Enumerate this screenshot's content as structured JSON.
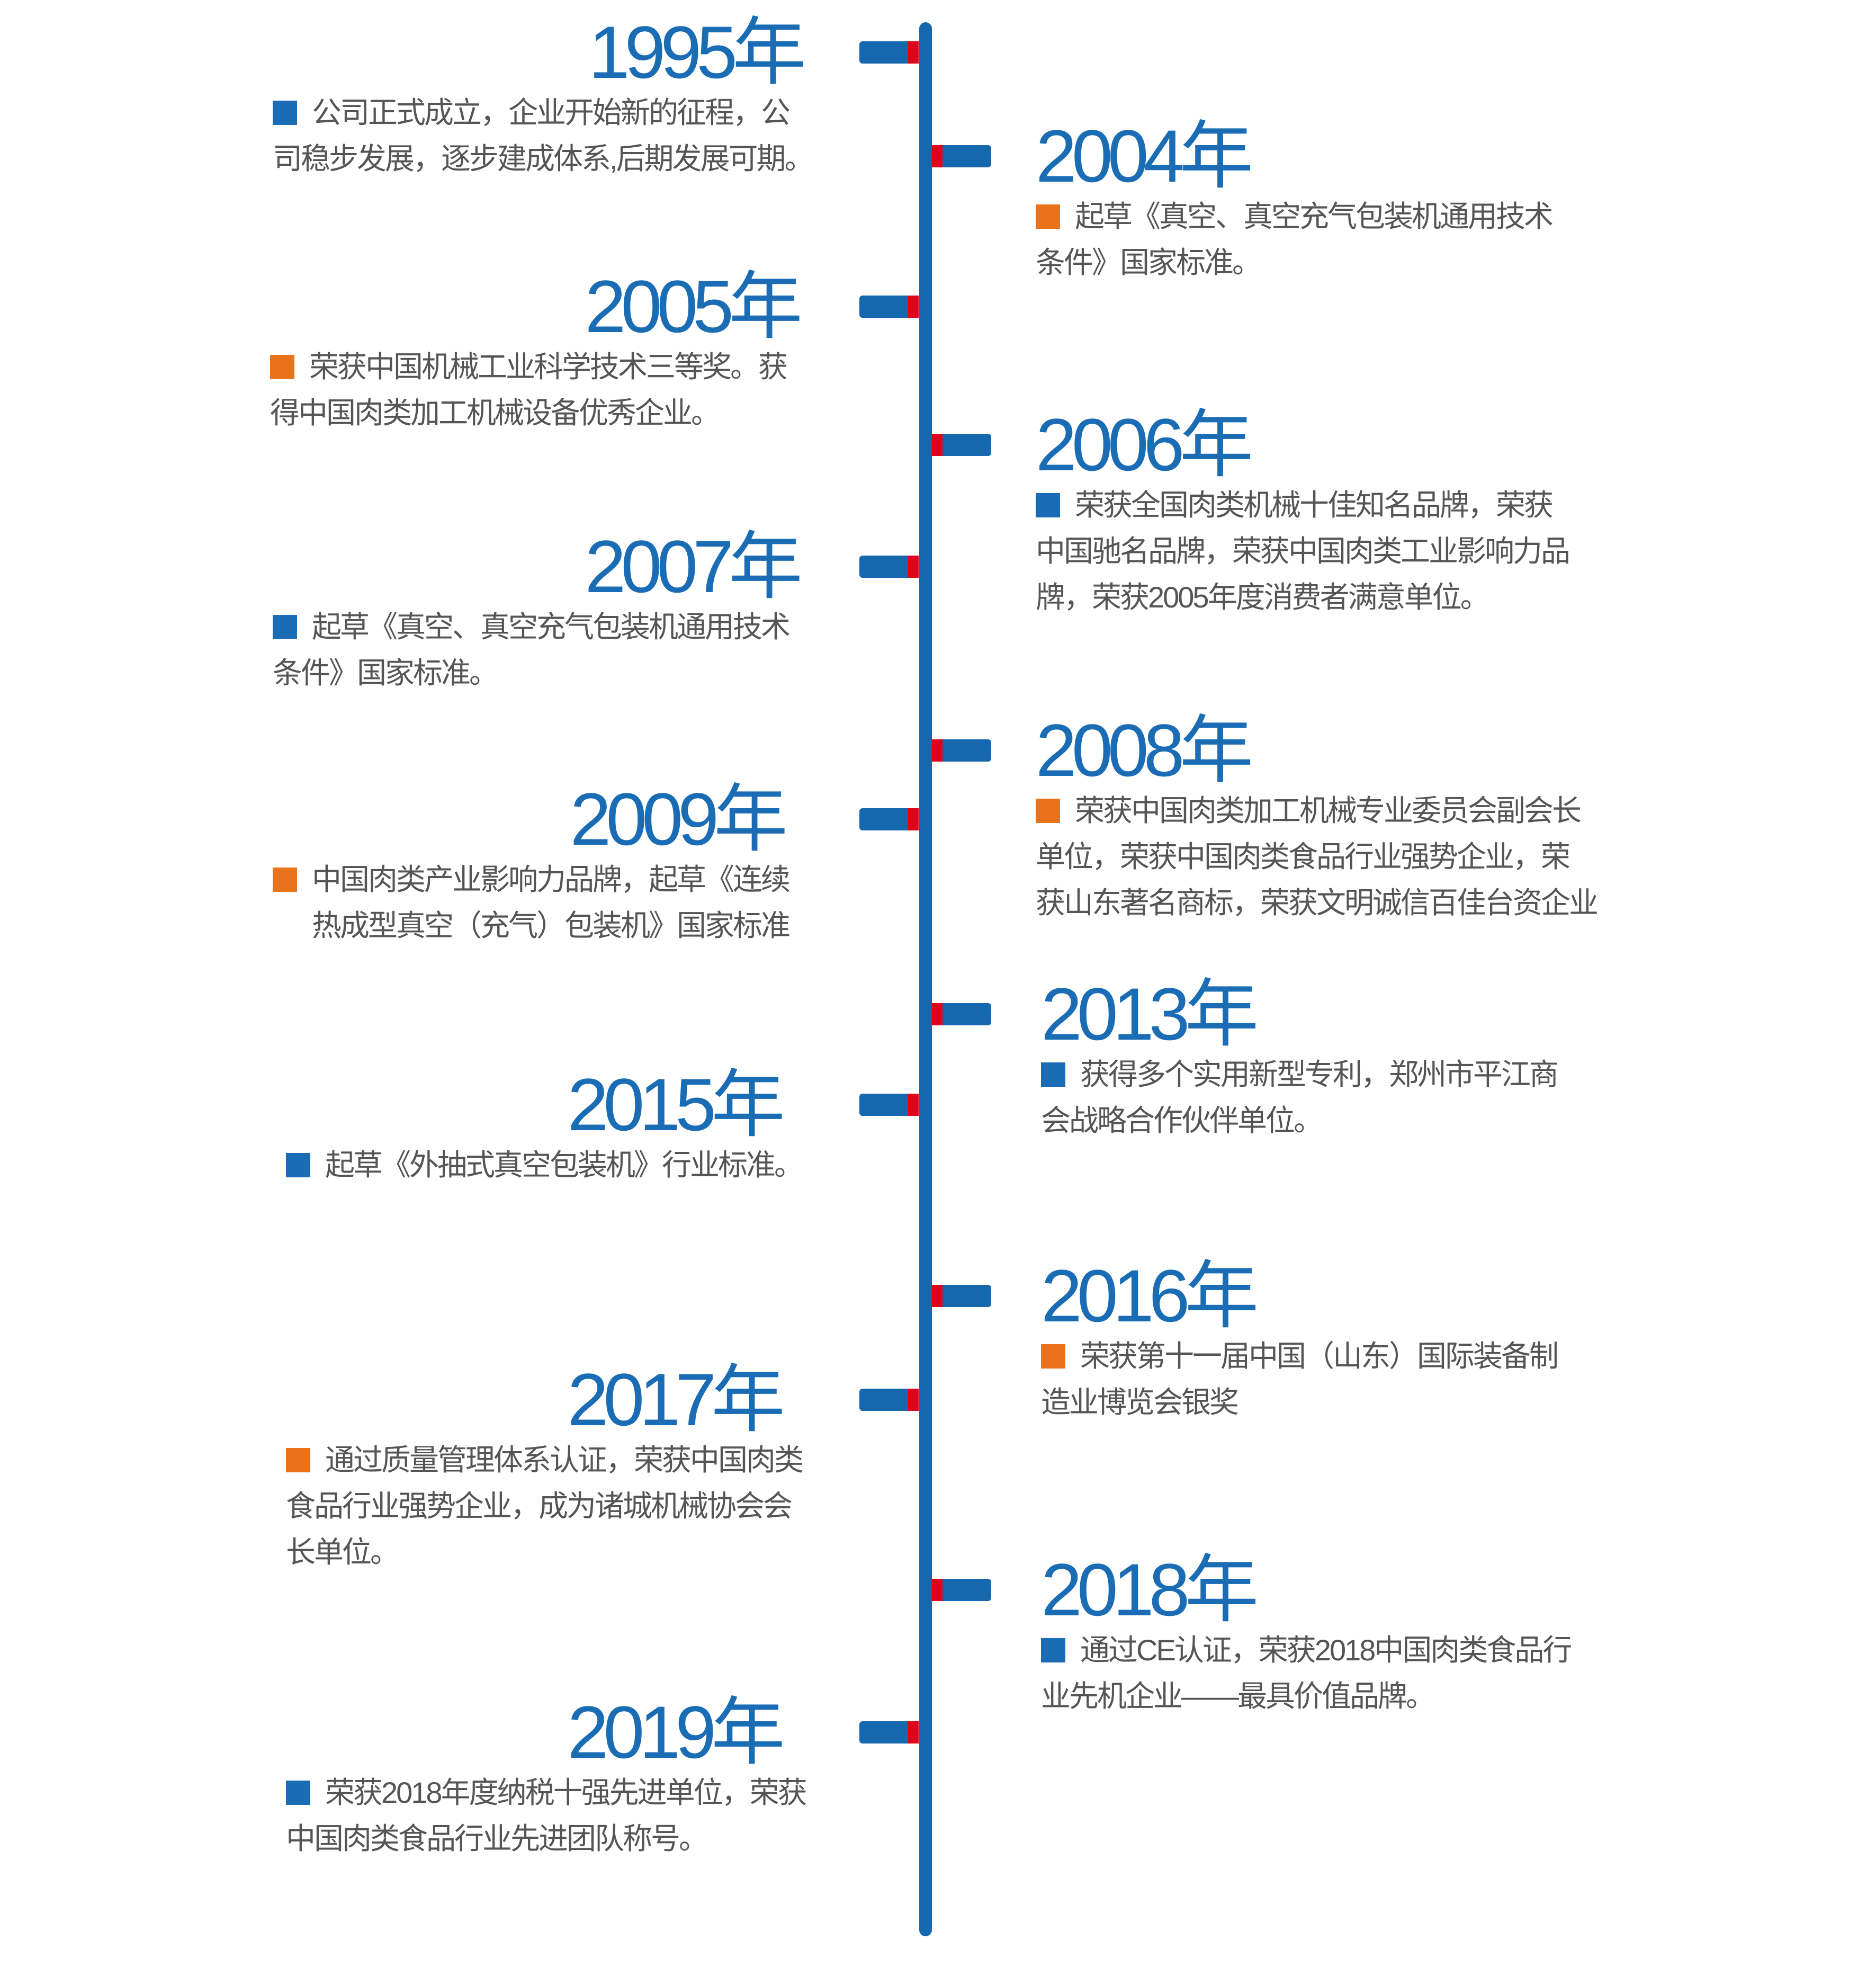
{
  "colors": {
    "axis": "#1568ad",
    "tick_blue": "#1568ad",
    "tick_red": "#e3001b",
    "year": "#1a6db5",
    "text": "#555555",
    "bullet_blue": "#1a6db5",
    "bullet_orange": "#e8731b"
  },
  "events": [
    {
      "year": "1995年",
      "side": "left",
      "bullet": "blue",
      "lines": [
        "公司正式成立，企业开始新的征程，公",
        "司稳步发展，逐步建成体系,后期发展可期。"
      ]
    },
    {
      "year": "2004年",
      "side": "right",
      "bullet": "orange",
      "lines": [
        "起草《真空、真空充气包装机通用技术",
        "条件》国家标准。"
      ]
    },
    {
      "year": "2005年",
      "side": "left",
      "bullet": "orange",
      "lines": [
        "荣获中国机械工业科学技术三等奖。获",
        "得中国肉类加工机械设备优秀企业。"
      ]
    },
    {
      "year": "2006年",
      "side": "right",
      "bullet": "blue",
      "lines": [
        "荣获全国肉类机械十佳知名品牌，荣获",
        "中国驰名品牌，荣获中国肉类工业影响力品",
        "牌，荣获2005年度消费者满意单位。"
      ]
    },
    {
      "year": "2007年",
      "side": "left",
      "bullet": "blue",
      "lines": [
        "起草《真空、真空充气包装机通用技术",
        "条件》国家标准。"
      ]
    },
    {
      "year": "2008年",
      "side": "right",
      "bullet": "orange",
      "lines": [
        "荣获中国肉类加工机械专业委员会副会长",
        "单位，荣获中国肉类食品行业强势企业，荣",
        "获山东著名商标，荣获文明诚信百佳台资企业"
      ]
    },
    {
      "year": "2009年",
      "side": "left",
      "bullet": "orange",
      "lines": [
        "中国肉类产业影响力品牌，起草《连续",
        "热成型真空（充气）包装机》国家标准"
      ]
    },
    {
      "year": "2013年",
      "side": "right",
      "bullet": "blue",
      "lines": [
        "获得多个实用新型专利，郑州市平江商",
        "会战略合作伙伴单位。"
      ]
    },
    {
      "year": "2015年",
      "side": "left",
      "bullet": "blue",
      "lines": [
        "起草《外抽式真空包装机》行业标准。"
      ]
    },
    {
      "year": "2016年",
      "side": "right",
      "bullet": "orange",
      "lines": [
        "荣获第十一届中国（山东）国际装备制",
        "造业博览会银奖"
      ]
    },
    {
      "year": "2017年",
      "side": "left",
      "bullet": "orange",
      "lines": [
        "通过质量管理体系认证，荣获中国肉类",
        "食品行业强势企业，成为诸城机械协会会",
        "长单位。"
      ]
    },
    {
      "year": "2018年",
      "side": "right",
      "bullet": "blue",
      "lines": [
        "通过CE认证，荣获2018中国肉类食品行",
        "业先机企业——最具价值品牌。"
      ]
    },
    {
      "year": "2019年",
      "side": "left",
      "bullet": "blue",
      "lines": [
        "荣获2018年度纳税十强先进单位，荣获",
        "中国肉类食品行业先进团队称号。"
      ]
    }
  ]
}
